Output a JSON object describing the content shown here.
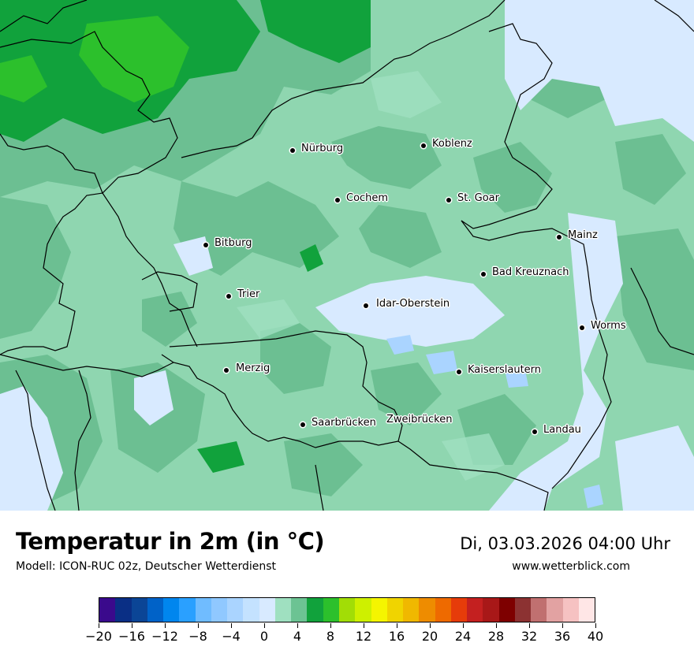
{
  "map": {
    "cities": [
      {
        "name": "Nürburg"
      },
      {
        "name": "Koblenz"
      },
      {
        "name": "Cochem"
      },
      {
        "name": "St. Goar"
      },
      {
        "name": "Mainz"
      },
      {
        "name": "Bitburg"
      },
      {
        "name": "Bad Kreuznach"
      },
      {
        "name": "Trier"
      },
      {
        "name": "Idar-Oberstein"
      },
      {
        "name": "Worms"
      },
      {
        "name": "Merzig"
      },
      {
        "name": "Kaiserslautern"
      },
      {
        "name": "Saarbrücken"
      },
      {
        "name": "Zweibrücken"
      },
      {
        "name": "Landau"
      }
    ]
  },
  "footer": {
    "title": "Temperatur in 2m (in °C)",
    "model": "Modell: ICON-RUC 02z, Deutscher Wetterdienst",
    "datetime": "Di, 03.03.2026 04:00 Uhr",
    "site": "www.wetterblick.com"
  },
  "legend": {
    "colors": [
      "#3a0a8c",
      "#0a2f85",
      "#0b4596",
      "#0062c8",
      "#0086ee",
      "#2aa0ff",
      "#70bcff",
      "#90c8ff",
      "#aad4ff",
      "#c4e2ff",
      "#d8eaff",
      "#9fe0c0",
      "#6cc393",
      "#11a23c",
      "#2cc02c",
      "#a2dd06",
      "#cef000",
      "#f5f500",
      "#f0d400",
      "#f0b800",
      "#ee8c00",
      "#ee6a00",
      "#e63c0a",
      "#c42020",
      "#a81818",
      "#7e0000",
      "#8c3232",
      "#c07070",
      "#e2a2a2",
      "#f6c2c2",
      "#ffe6e6"
    ],
    "ticks": [
      "−20",
      "−16",
      "−12",
      "−8",
      "−4",
      "0",
      "4",
      "8",
      "12",
      "16",
      "20",
      "24",
      "28",
      "32",
      "36",
      "40"
    ]
  }
}
